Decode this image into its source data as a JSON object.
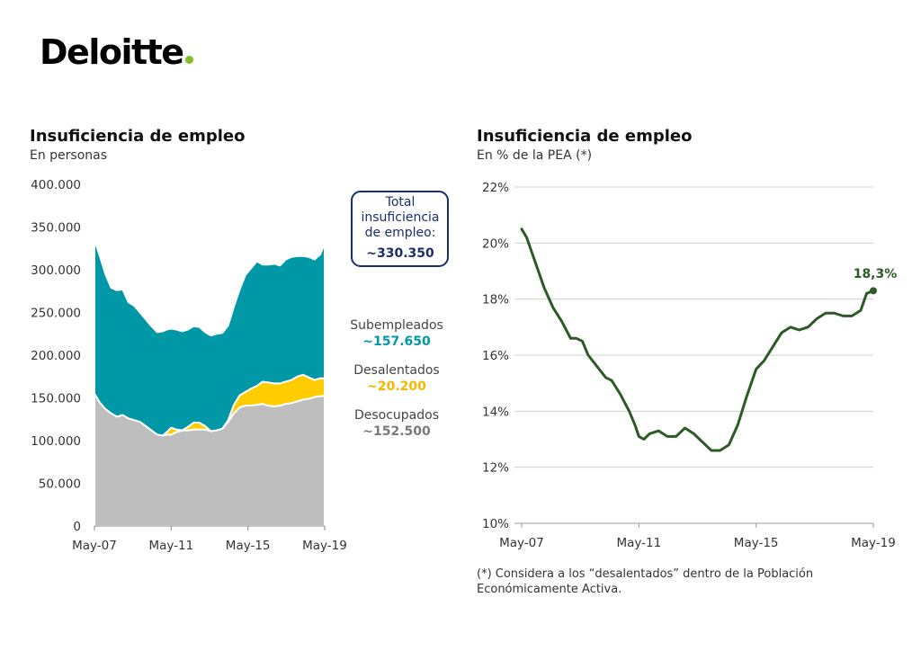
{
  "logo": {
    "text": "Deloitte",
    "dot_color": "#86bc25"
  },
  "chart_data": [
    {
      "type": "area",
      "title": "Insuficiencia de empleo",
      "subtitle": "En personas",
      "stacked": true,
      "ylim": [
        0,
        400000
      ],
      "yticks": [
        "0",
        "50.000",
        "100.000",
        "150.000",
        "200.000",
        "250.000",
        "300.000",
        "350.000",
        "400.000"
      ],
      "xticks": [
        "May-07",
        "May-11",
        "May-15",
        "May-19"
      ],
      "x": [
        2007.33,
        2007.6,
        2007.9,
        2008.2,
        2008.5,
        2008.8,
        2009.1,
        2009.4,
        2009.7,
        2010.0,
        2010.3,
        2010.6,
        2010.9,
        2011.1,
        2011.33,
        2011.6,
        2011.9,
        2012.2,
        2012.5,
        2012.8,
        2013.1,
        2013.4,
        2013.7,
        2014.0,
        2014.3,
        2014.6,
        2014.9,
        2015.2,
        2015.5,
        2015.8,
        2016.1,
        2016.4,
        2016.7,
        2017.0,
        2017.3,
        2017.6,
        2017.9,
        2018.2,
        2018.5,
        2018.8,
        2019.1,
        2019.33
      ],
      "series": [
        {
          "name": "Desocupados",
          "color": "#bebebe",
          "values": [
            155000,
            145000,
            137000,
            132000,
            128000,
            130000,
            126000,
            124000,
            122000,
            117000,
            112000,
            107000,
            106000,
            107000,
            107000,
            110000,
            112000,
            112000,
            113000,
            113000,
            113000,
            111000,
            112000,
            114000,
            122000,
            132000,
            139000,
            141000,
            141000,
            142000,
            143000,
            141000,
            140000,
            141000,
            143000,
            144000,
            146000,
            148000,
            149000,
            151000,
            152000,
            152500
          ]
        },
        {
          "name": "Desalentados",
          "color": "#ffcc00",
          "values": [
            0,
            0,
            0,
            0,
            0,
            0,
            0,
            0,
            0,
            0,
            0,
            0,
            0,
            3000,
            8000,
            3000,
            0,
            4000,
            8000,
            8000,
            4000,
            0,
            0,
            0,
            2000,
            10000,
            14000,
            16000,
            20000,
            22000,
            26000,
            27000,
            27000,
            26000,
            26000,
            27000,
            29000,
            29000,
            25000,
            20000,
            21000,
            20200
          ]
        },
        {
          "name": "Subempleados",
          "color": "#0097a7",
          "values": [
            180000,
            172000,
            158000,
            147000,
            148000,
            147000,
            136000,
            134000,
            128000,
            125000,
            122000,
            120000,
            122000,
            120000,
            116000,
            117000,
            116000,
            114000,
            113000,
            112000,
            110000,
            112000,
            113000,
            112000,
            111000,
            115000,
            124000,
            137000,
            141000,
            146000,
            137000,
            138000,
            140000,
            138000,
            143000,
            144000,
            141000,
            139000,
            141000,
            141000,
            145000,
            157650
          ]
        }
      ],
      "annotations": {
        "total_box": {
          "label": "Total insuficiencia de empleo:",
          "label_lines": [
            "Total",
            "insuficiencia",
            "de empleo:"
          ],
          "value": "~330.350",
          "color": "#1a2e6b"
        },
        "subempleados": {
          "label": "Subempleados",
          "value": "~157.650",
          "color": "#0097a7"
        },
        "desalentados": {
          "label": "Desalentados",
          "value": "~20.200",
          "color": "#f5b800"
        },
        "desocupados": {
          "label": "Desocupados",
          "value": "~152.500",
          "color": "#7a7a7a"
        }
      }
    },
    {
      "type": "line",
      "title": "Insuficiencia de empleo",
      "subtitle": "En % de la PEA (*)",
      "ylim": [
        10,
        22
      ],
      "yticks": [
        "10%",
        "12%",
        "14%",
        "16%",
        "18%",
        "20%",
        "22%"
      ],
      "xticks": [
        "May-07",
        "May-11",
        "May-15",
        "May-19"
      ],
      "grid": true,
      "color": "#2d5a27",
      "x": [
        2007.33,
        2007.5,
        2007.8,
        2008.1,
        2008.4,
        2008.7,
        2009.0,
        2009.2,
        2009.4,
        2009.6,
        2009.9,
        2010.2,
        2010.4,
        2010.7,
        2011.0,
        2011.2,
        2011.33,
        2011.5,
        2011.7,
        2012.0,
        2012.3,
        2012.6,
        2012.9,
        2013.2,
        2013.5,
        2013.8,
        2014.1,
        2014.4,
        2014.7,
        2015.0,
        2015.33,
        2015.6,
        2015.9,
        2016.2,
        2016.5,
        2016.8,
        2017.1,
        2017.4,
        2017.7,
        2018.0,
        2018.3,
        2018.6,
        2018.9,
        2019.1,
        2019.33
      ],
      "values": [
        20.5,
        20.2,
        19.3,
        18.4,
        17.7,
        17.2,
        16.6,
        16.6,
        16.5,
        16.0,
        15.6,
        15.2,
        15.1,
        14.6,
        14.0,
        13.5,
        13.1,
        13.0,
        13.2,
        13.3,
        13.1,
        13.1,
        13.4,
        13.2,
        12.9,
        12.6,
        12.6,
        12.8,
        13.5,
        14.5,
        15.5,
        15.8,
        16.3,
        16.8,
        17.0,
        16.9,
        17.0,
        17.3,
        17.5,
        17.5,
        17.4,
        17.4,
        17.6,
        18.2,
        18.3
      ],
      "last_label": "18,3%"
    }
  ],
  "footnote": "(*) Considera a los “desalentados” dentro de la Población Económicamente Activa."
}
